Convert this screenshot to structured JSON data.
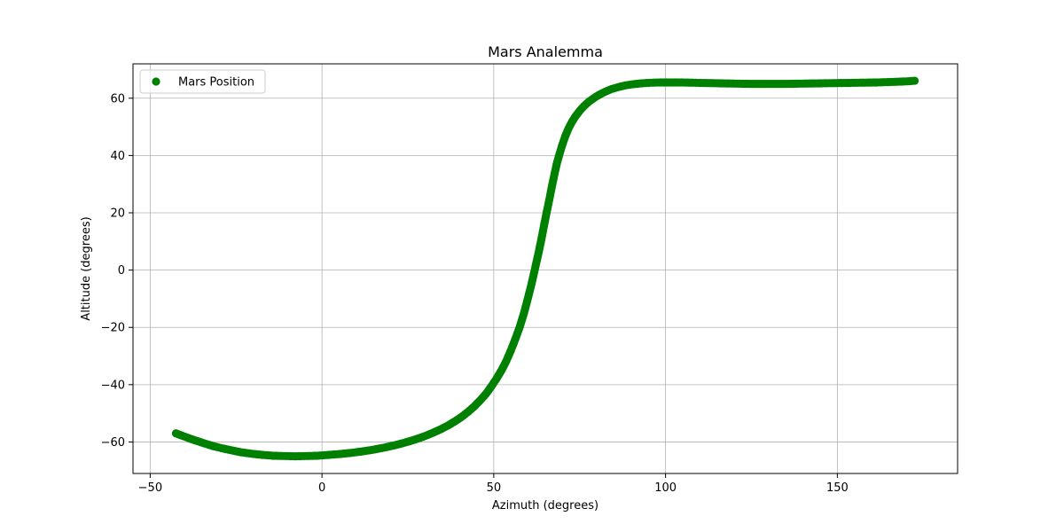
{
  "chart_data": {
    "type": "scatter",
    "title": "Mars Analemma",
    "xlabel": "Azimuth (degrees)",
    "ylabel": "Altitude (degrees)",
    "xlim": [
      -55,
      185
    ],
    "ylim": [
      -71,
      72
    ],
    "xticks": [
      -50,
      0,
      50,
      100,
      150
    ],
    "yticks": [
      -60,
      -40,
      -20,
      0,
      20,
      40,
      60
    ],
    "xtick_labels": [
      "−50",
      "0",
      "50",
      "100",
      "150"
    ],
    "ytick_labels": [
      "−60",
      "−40",
      "−20",
      "0",
      "20",
      "40",
      "60"
    ],
    "grid": true,
    "legend_position": "top-left",
    "colors": {
      "series": "#008000",
      "grid": "#b0b0b0",
      "axes": "#000000"
    },
    "series": [
      {
        "name": "Mars Position",
        "x": [
          -42.5,
          -40.7,
          -38.7,
          -36.5,
          -34.2,
          -31.8,
          -29.1,
          -26.4,
          -23.5,
          -20.5,
          -17.4,
          -14.2,
          -11.0,
          -7.8,
          -4.6,
          -1.3,
          2.0,
          5.3,
          8.5,
          11.7,
          14.9,
          18.0,
          21.0,
          23.9,
          26.7,
          29.4,
          31.9,
          34.3,
          36.6,
          38.7,
          40.7,
          42.6,
          44.4,
          46.1,
          47.8,
          49.3,
          50.8,
          52.3,
          53.7,
          55.0,
          56.3,
          57.6,
          58.8,
          59.9,
          61.0,
          62.0,
          63.0,
          63.9,
          64.7,
          65.5,
          66.3,
          67.0,
          67.7,
          68.4,
          69.2,
          70.0,
          70.8,
          71.7,
          72.7,
          73.8,
          75.0,
          76.3,
          77.7,
          79.2,
          80.8,
          82.5,
          84.3,
          86.3,
          88.4,
          90.6,
          93.0,
          95.6,
          98.4,
          101.4,
          104.7,
          108.2,
          112.0,
          116.0,
          120.3,
          124.9,
          129.7,
          134.7,
          139.9,
          145.2,
          150.6,
          156.0,
          161.3,
          166.4,
          170.4,
          172.5
        ],
        "y": [
          -57.0,
          -57.8,
          -58.7,
          -59.6,
          -60.5,
          -61.4,
          -62.2,
          -62.9,
          -63.6,
          -64.1,
          -64.5,
          -64.8,
          -64.9,
          -65.0,
          -64.9,
          -64.8,
          -64.5,
          -64.2,
          -63.8,
          -63.3,
          -62.7,
          -62.0,
          -61.2,
          -60.3,
          -59.3,
          -58.2,
          -57.0,
          -55.7,
          -54.3,
          -52.8,
          -51.2,
          -49.4,
          -47.5,
          -45.4,
          -43.1,
          -40.6,
          -37.9,
          -34.9,
          -31.6,
          -28.0,
          -24.0,
          -19.7,
          -15.0,
          -10.0,
          -4.8,
          0.5,
          5.8,
          11.0,
          16.0,
          20.8,
          25.4,
          29.7,
          33.7,
          37.4,
          40.8,
          43.9,
          46.7,
          49.3,
          51.6,
          53.7,
          55.6,
          57.3,
          58.8,
          60.1,
          61.3,
          62.3,
          63.2,
          63.9,
          64.5,
          64.9,
          65.2,
          65.4,
          65.5,
          65.5,
          65.5,
          65.4,
          65.3,
          65.2,
          65.1,
          65.0,
          65.0,
          65.0,
          65.1,
          65.2,
          65.3,
          65.4,
          65.5,
          65.7,
          65.9,
          66.1
        ]
      }
    ]
  }
}
